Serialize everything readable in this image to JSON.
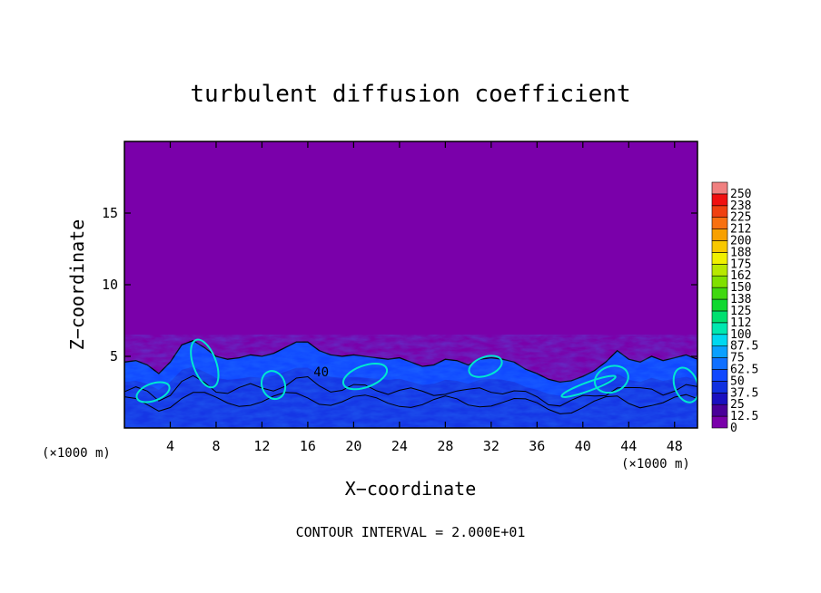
{
  "chart_data": {
    "type": "heatmap",
    "title": "turbulent diffusion coefficient",
    "xlabel": "X−coordinate",
    "ylabel": "Z−coordinate",
    "x_unit_left": "(×1000 m)",
    "x_unit_right": "(×1000 m)",
    "footer": "CONTOUR INTERVAL = 2.000E+01",
    "xlim": [
      0,
      50
    ],
    "ylim": [
      0,
      20
    ],
    "x_ticks": [
      4,
      8,
      12,
      16,
      20,
      24,
      28,
      32,
      36,
      40,
      44,
      48
    ],
    "y_ticks": [
      5,
      10,
      15
    ],
    "contour_label": "40",
    "contour_label_pos": [
      16.5,
      3.6
    ],
    "background_value": 0,
    "colorbar": {
      "levels": [
        "0",
        "12.5",
        "25",
        "37.5",
        "50",
        "62.5",
        "75",
        "87.5",
        "100",
        "112",
        "125",
        "138",
        "150",
        "162",
        "175",
        "188",
        "200",
        "212",
        "225",
        "238",
        "250"
      ],
      "colors": [
        "#7a00aa",
        "#4a0099",
        "#1a10c0",
        "#1030e0",
        "#1048ff",
        "#1070ff",
        "#0aa0ff",
        "#00d8f0",
        "#00e8b0",
        "#00e070",
        "#10d830",
        "#40d810",
        "#80e000",
        "#b8e800",
        "#f0f000",
        "#f8c800",
        "#f8a000",
        "#f87010",
        "#f04010",
        "#f01010",
        "#f08080"
      ]
    },
    "turbulent_layer_top": [
      [
        0,
        4.6
      ],
      [
        1,
        4.7
      ],
      [
        2,
        4.4
      ],
      [
        3,
        3.8
      ],
      [
        4,
        4.6
      ],
      [
        5,
        5.8
      ],
      [
        6,
        6.1
      ],
      [
        7,
        5.6
      ],
      [
        8,
        5.0
      ],
      [
        9,
        4.8
      ],
      [
        10,
        4.9
      ],
      [
        11,
        5.1
      ],
      [
        12,
        5.0
      ],
      [
        13,
        5.2
      ],
      [
        14,
        5.6
      ],
      [
        15,
        6.0
      ],
      [
        16,
        6.0
      ],
      [
        17,
        5.4
      ],
      [
        18,
        5.1
      ],
      [
        19,
        5.0
      ],
      [
        20,
        5.1
      ],
      [
        21,
        5.0
      ],
      [
        22,
        4.9
      ],
      [
        23,
        4.8
      ],
      [
        24,
        4.9
      ],
      [
        25,
        4.6
      ],
      [
        26,
        4.3
      ],
      [
        27,
        4.4
      ],
      [
        28,
        4.8
      ],
      [
        29,
        4.7
      ],
      [
        30,
        4.4
      ],
      [
        31,
        4.8
      ],
      [
        32,
        4.9
      ],
      [
        33,
        4.8
      ],
      [
        34,
        4.6
      ],
      [
        35,
        4.1
      ],
      [
        36,
        3.8
      ],
      [
        37,
        3.4
      ],
      [
        38,
        3.2
      ],
      [
        39,
        3.3
      ],
      [
        40,
        3.6
      ],
      [
        41,
        4.0
      ],
      [
        42,
        4.6
      ],
      [
        43,
        5.4
      ],
      [
        44,
        4.8
      ],
      [
        45,
        4.6
      ],
      [
        46,
        5.0
      ],
      [
        47,
        4.7
      ],
      [
        48,
        4.9
      ],
      [
        49,
        5.1
      ],
      [
        50,
        4.8
      ]
    ]
  }
}
